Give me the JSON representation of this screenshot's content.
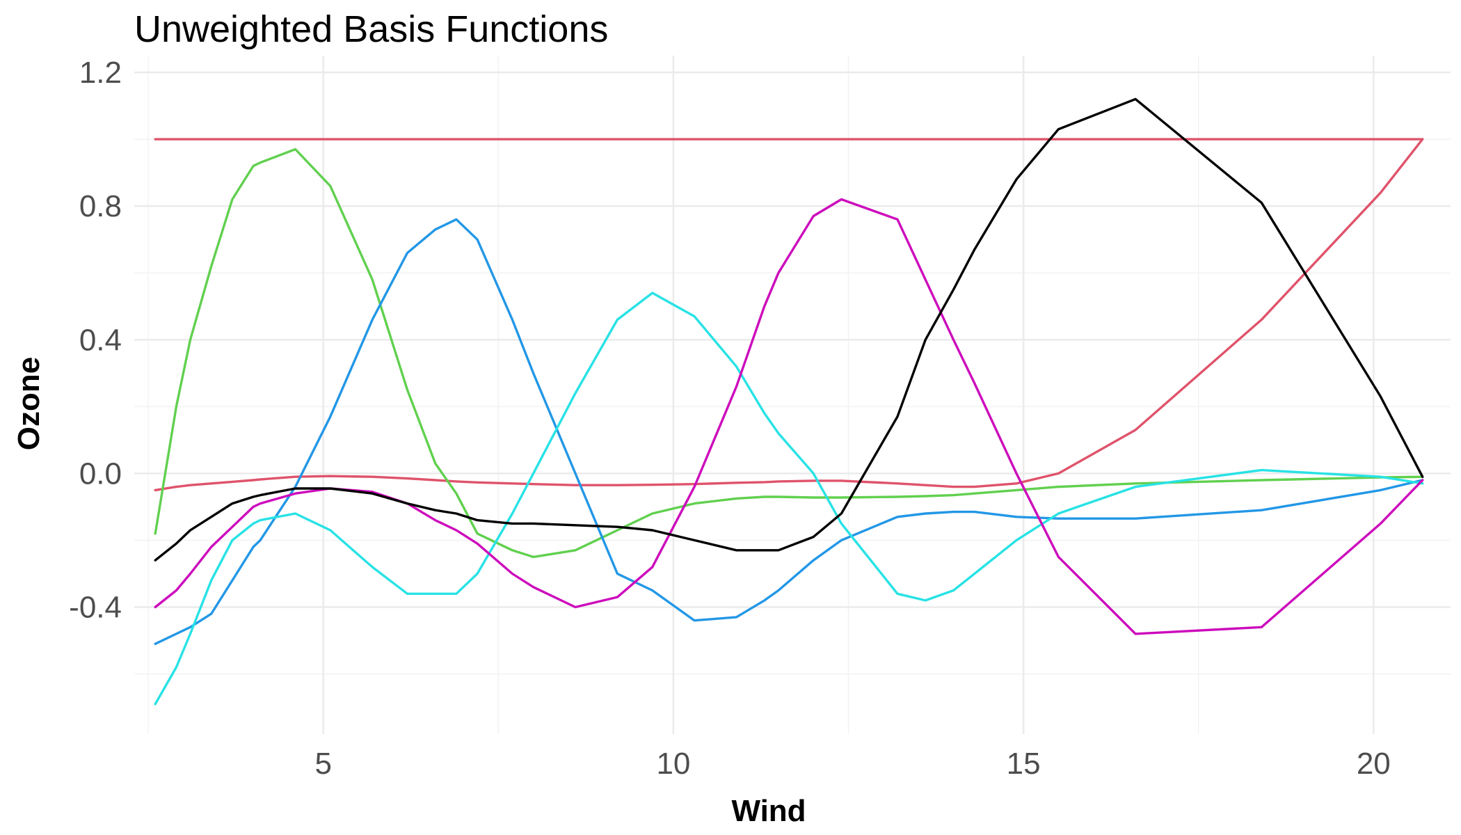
{
  "chart_data": {
    "type": "line",
    "title": "Unweighted Basis Functions",
    "xlabel": "Wind",
    "ylabel": "Ozone",
    "xlim": [
      2.3,
      21.1
    ],
    "ylim": [
      -0.78,
      1.25
    ],
    "x_ticks": [
      5,
      10,
      15,
      20
    ],
    "x_tick_labels": [
      "5",
      "10",
      "15",
      "20"
    ],
    "y_ticks": [
      -0.4,
      0.0,
      0.4,
      0.8,
      1.2
    ],
    "y_tick_labels": [
      "-0.4",
      "0.0",
      "0.4",
      "0.8",
      "1.2"
    ],
    "grid": true,
    "legend": "none",
    "x": [
      2.6,
      2.9,
      3.1,
      3.4,
      3.7,
      4.0,
      4.1,
      4.6,
      5.1,
      5.7,
      6.2,
      6.6,
      6.9,
      7.2,
      7.7,
      8.0,
      8.6,
      9.2,
      9.7,
      10.3,
      10.9,
      11.3,
      11.5,
      12.0,
      12.4,
      13.2,
      13.6,
      14.0,
      14.3,
      14.9,
      15.5,
      16.6,
      18.4,
      20.1,
      20.7
    ],
    "series": [
      {
        "color": "#DF536B",
        "values": [
          1.0,
          1.0,
          1.0,
          1.0,
          1.0,
          1.0,
          1.0,
          1.0,
          1.0,
          1.0,
          1.0,
          1.0,
          1.0,
          1.0,
          1.0,
          1.0,
          1.0,
          1.0,
          1.0,
          1.0,
          1.0,
          1.0,
          1.0,
          1.0,
          1.0,
          1.0,
          1.0,
          1.0,
          1.0,
          1.0,
          1.0,
          1.0,
          1.0,
          1.0,
          1.0
        ]
      },
      {
        "color": "#DF536B",
        "values": [
          -0.05,
          -0.04,
          -0.035,
          -0.03,
          -0.025,
          -0.02,
          -0.018,
          -0.01,
          -0.008,
          -0.01,
          -0.015,
          -0.02,
          -0.024,
          -0.027,
          -0.03,
          -0.032,
          -0.035,
          -0.035,
          -0.034,
          -0.032,
          -0.028,
          -0.026,
          -0.024,
          -0.022,
          -0.022,
          -0.03,
          -0.035,
          -0.04,
          -0.04,
          -0.03,
          0.0,
          0.13,
          0.46,
          0.84,
          1.0
        ]
      },
      {
        "color": "#61D04F",
        "values": [
          -0.18,
          0.2,
          0.4,
          0.62,
          0.82,
          0.92,
          0.93,
          0.97,
          0.86,
          0.58,
          0.25,
          0.03,
          -0.06,
          -0.18,
          -0.23,
          -0.25,
          -0.23,
          -0.17,
          -0.12,
          -0.09,
          -0.075,
          -0.07,
          -0.07,
          -0.072,
          -0.072,
          -0.07,
          -0.068,
          -0.065,
          -0.06,
          -0.05,
          -0.04,
          -0.03,
          -0.02,
          -0.012,
          -0.01
        ]
      },
      {
        "color": "#2297E6",
        "values": [
          -0.51,
          -0.48,
          -0.46,
          -0.42,
          -0.32,
          -0.22,
          -0.2,
          -0.04,
          0.17,
          0.46,
          0.66,
          0.73,
          0.76,
          0.7,
          0.46,
          0.3,
          0.0,
          -0.3,
          -0.35,
          -0.44,
          -0.43,
          -0.38,
          -0.35,
          -0.26,
          -0.2,
          -0.13,
          -0.12,
          -0.115,
          -0.115,
          -0.13,
          -0.135,
          -0.135,
          -0.11,
          -0.05,
          -0.02
        ]
      },
      {
        "color": "#28E2E5",
        "values": [
          -0.69,
          -0.58,
          -0.48,
          -0.32,
          -0.2,
          -0.15,
          -0.14,
          -0.12,
          -0.17,
          -0.28,
          -0.36,
          -0.36,
          -0.36,
          -0.3,
          -0.12,
          0.0,
          0.24,
          0.46,
          0.54,
          0.47,
          0.32,
          0.18,
          0.12,
          0.0,
          -0.15,
          -0.36,
          -0.38,
          -0.35,
          -0.3,
          -0.2,
          -0.12,
          -0.04,
          0.01,
          -0.01,
          -0.03
        ]
      },
      {
        "color": "#CD0BBC",
        "values": [
          -0.4,
          -0.35,
          -0.3,
          -0.22,
          -0.16,
          -0.1,
          -0.09,
          -0.06,
          -0.045,
          -0.055,
          -0.09,
          -0.14,
          -0.17,
          -0.21,
          -0.3,
          -0.34,
          -0.4,
          -0.37,
          -0.28,
          -0.04,
          0.26,
          0.5,
          0.6,
          0.77,
          0.82,
          0.76,
          0.58,
          0.4,
          0.27,
          0.0,
          -0.25,
          -0.48,
          -0.46,
          -0.15,
          -0.02
        ]
      },
      {
        "color": "#000000",
        "values": [
          -0.26,
          -0.21,
          -0.17,
          -0.13,
          -0.09,
          -0.07,
          -0.065,
          -0.045,
          -0.045,
          -0.06,
          -0.09,
          -0.11,
          -0.12,
          -0.14,
          -0.15,
          -0.15,
          -0.155,
          -0.16,
          -0.17,
          -0.2,
          -0.23,
          -0.23,
          -0.23,
          -0.19,
          -0.12,
          0.17,
          0.4,
          0.55,
          0.67,
          0.88,
          1.03,
          1.12,
          0.81,
          0.23,
          -0.01
        ]
      }
    ]
  }
}
